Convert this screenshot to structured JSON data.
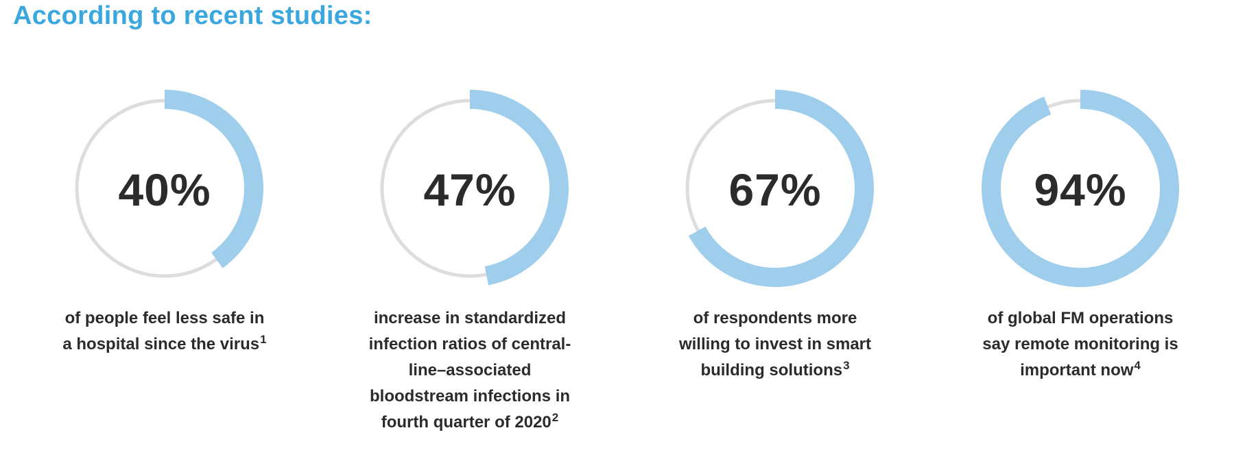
{
  "heading": "According to recent studies:",
  "colors": {
    "heading": "#3aa8df",
    "arc": "#9fcdec",
    "track": "#dddddd",
    "text": "#2b2b2b"
  },
  "chart_data": {
    "type": "pie",
    "stats": [
      {
        "label": "40%",
        "value": 40,
        "lines": [
          "of people feel less safe in",
          "a hospital since the virus"
        ],
        "footnote": "1"
      },
      {
        "label": "47%",
        "value": 47,
        "lines": [
          "increase in standardized",
          "infection ratios of central-",
          "line–associated",
          "bloodstream infections in",
          "fourth quarter of 2020"
        ],
        "footnote": "2"
      },
      {
        "label": "67%",
        "value": 67,
        "lines": [
          "of respondents more",
          "willing to invest in smart",
          "building solutions"
        ],
        "footnote": "3"
      },
      {
        "label": "94%",
        "value": 94,
        "lines": [
          "of global FM operations",
          "say remote monitoring is",
          "important now"
        ],
        "footnote": "4"
      }
    ]
  }
}
